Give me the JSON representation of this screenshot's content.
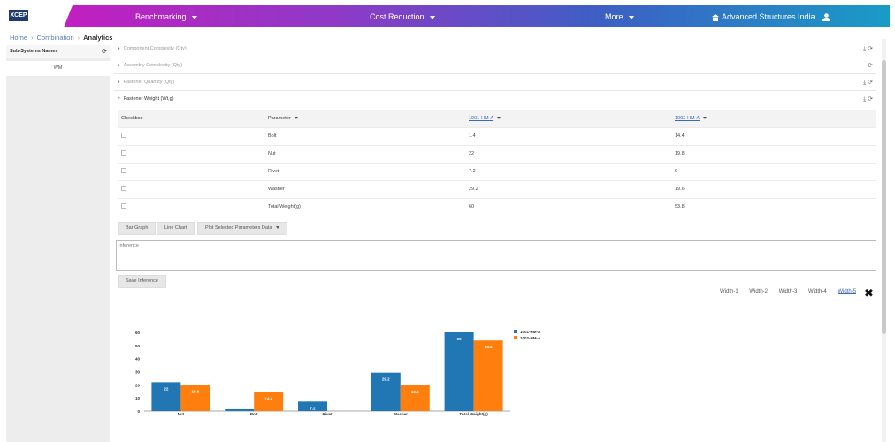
{
  "nav": {
    "logo": "XCEP",
    "benchmarking": "Benchmarking",
    "cost_reduction": "Cost Reduction",
    "more": "More",
    "company": "Advanced Structures India"
  },
  "breadcrumb": {
    "home": "Home",
    "combination": "Combination",
    "current": "Analytics"
  },
  "sidebar": {
    "title": "Sub-Systems Names",
    "item": "WM"
  },
  "accordions": [
    {
      "label": "Component Complexity (Qty)"
    },
    {
      "label": "Assembly Complexity (Qty)"
    },
    {
      "label": "Fastener Quantity (Qty)"
    },
    {
      "label": "Fastener Weight (Wt,g)"
    }
  ],
  "table": {
    "headers": [
      "Checkbox",
      "Parameter",
      "1001-HM-A",
      "1002-HM-A"
    ],
    "rows": [
      [
        "Bolt",
        "1.4",
        "14.4"
      ],
      [
        "Nut",
        "22",
        "19.8"
      ],
      [
        "Rivet",
        "7.2",
        "0"
      ],
      [
        "Washer",
        "29.2",
        "19.6"
      ],
      [
        "Total Weight(g)",
        "60",
        "53.8"
      ]
    ]
  },
  "buttons": {
    "bar_graph": "Bar Graph",
    "line_chart": "Line Chart",
    "plot_selected": "Plot Selected Parameters Data",
    "save_inference": "Save Inference"
  },
  "inference_placeholder": "Inference",
  "widths": [
    "Width-1",
    "Width-2",
    "Width-3",
    "Width-4",
    "Width-5"
  ],
  "colors": {
    "series1": "#2077b4",
    "series2": "#ff7f0e"
  },
  "chart_data": {
    "type": "bar",
    "categories": [
      "Nut",
      "Bolt",
      "Rivet",
      "Washer",
      "Total Weight(g)"
    ],
    "series": [
      {
        "name": "1001-HM-A",
        "values": [
          22,
          1.4,
          7.2,
          29.2,
          60
        ]
      },
      {
        "name": "1002-HM-A",
        "values": [
          19.8,
          14.4,
          0,
          19.6,
          53.8
        ]
      }
    ],
    "ylim": [
      0,
      60
    ],
    "yticks": [
      0,
      10,
      20,
      30,
      40,
      50,
      60
    ],
    "legend": "top-right"
  }
}
